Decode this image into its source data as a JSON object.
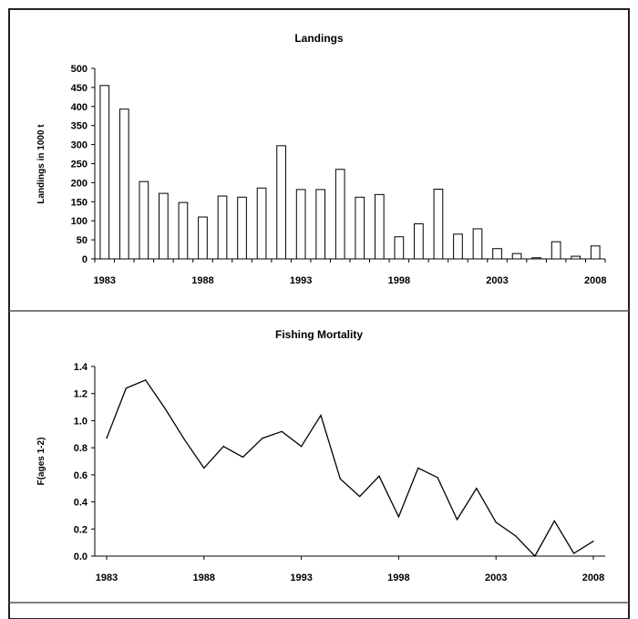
{
  "chart_data": [
    {
      "type": "bar",
      "title": "Landings",
      "xlabel": "",
      "ylabel": "Landings in 1000 t",
      "ylim": [
        0,
        500
      ],
      "yticks": [
        0,
        50,
        100,
        150,
        200,
        250,
        300,
        350,
        400,
        450,
        500
      ],
      "xticks": [
        1983,
        1988,
        1993,
        1998,
        2003,
        2008
      ],
      "categories": [
        1983,
        1984,
        1985,
        1986,
        1987,
        1988,
        1989,
        1990,
        1991,
        1992,
        1993,
        1994,
        1995,
        1996,
        1997,
        1998,
        1999,
        2000,
        2001,
        2002,
        2003,
        2004,
        2005,
        2006,
        2007,
        2008
      ],
      "values": [
        455,
        393,
        203,
        172,
        148,
        110,
        165,
        162,
        186,
        297,
        182,
        182,
        235,
        162,
        169,
        58,
        92,
        183,
        65,
        79,
        27,
        14,
        3,
        45,
        7,
        34
      ],
      "grid": false,
      "bar_fill": "#ffffff",
      "bar_stroke": "#000000"
    },
    {
      "type": "line",
      "title": "Fishing Mortality",
      "xlabel": "",
      "ylabel": "F(ages 1-2)",
      "ylim": [
        0,
        1.4
      ],
      "yticks": [
        "0.0",
        "0.2",
        "0.4",
        "0.6",
        "0.8",
        "1.0",
        "1.2",
        "1.4"
      ],
      "xticks": [
        1983,
        1988,
        1993,
        1998,
        2003,
        2008
      ],
      "x": [
        1983,
        1984,
        1985,
        1986,
        1987,
        1988,
        1989,
        1990,
        1991,
        1992,
        1993,
        1994,
        1995,
        1996,
        1997,
        1998,
        1999,
        2000,
        2001,
        2002,
        2003,
        2004,
        2005,
        2006,
        2007,
        2008
      ],
      "values": [
        0.87,
        1.24,
        1.3,
        1.09,
        0.86,
        0.65,
        0.81,
        0.73,
        0.87,
        0.92,
        0.81,
        1.04,
        0.57,
        0.44,
        0.59,
        0.29,
        0.65,
        0.58,
        0.27,
        0.5,
        0.25,
        0.15,
        0.0,
        0.26,
        0.02,
        0.11
      ],
      "grid": false,
      "line_color": "#000000"
    }
  ]
}
